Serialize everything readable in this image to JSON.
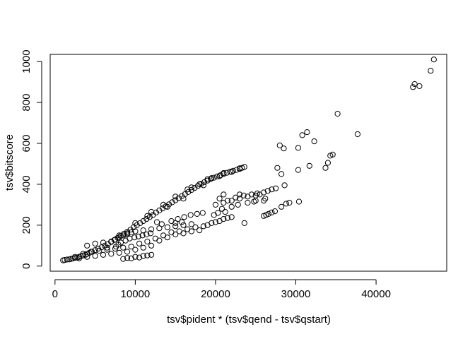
{
  "chart_data": {
    "type": "scatter",
    "title": "",
    "xlabel": "tsv$pident * (tsv$qend - tsv$qstart)",
    "ylabel": "tsv$bitscore",
    "xlim": [
      -600,
      48800
    ],
    "ylim": [
      -25,
      1035
    ],
    "x_ticks": [
      0,
      10000,
      20000,
      30000,
      40000
    ],
    "x_tick_labels": [
      "0",
      "10000",
      "20000",
      "30000",
      "40000"
    ],
    "y_ticks": [
      0,
      200,
      400,
      600,
      800,
      1000
    ],
    "y_tick_labels": [
      "0",
      "200",
      "400",
      "600",
      "800",
      "1000"
    ],
    "grid": false,
    "legend": "none",
    "marker": "open-circle",
    "marker_color": "#000000",
    "points_note": "dense bands approximated; isolated points read off axes",
    "series": [
      {
        "name": "",
        "points": [
          [
            1000,
            28
          ],
          [
            1200,
            30
          ],
          [
            1500,
            32
          ],
          [
            1800,
            33
          ],
          [
            2000,
            35
          ],
          [
            2200,
            37
          ],
          [
            2500,
            40
          ],
          [
            2800,
            42
          ],
          [
            3000,
            45
          ],
          [
            3200,
            48
          ],
          [
            3500,
            52
          ],
          [
            3800,
            55
          ],
          [
            4000,
            60
          ],
          [
            4300,
            65
          ],
          [
            4600,
            70
          ],
          [
            5000,
            78
          ],
          [
            5400,
            85
          ],
          [
            5800,
            92
          ],
          [
            6200,
            100
          ],
          [
            6600,
            108
          ],
          [
            7000,
            118
          ],
          [
            7400,
            128
          ],
          [
            7800,
            138
          ],
          [
            8200,
            148
          ],
          [
            8600,
            158
          ],
          [
            9000,
            168
          ],
          [
            9400,
            178
          ],
          [
            9800,
            190
          ],
          [
            10200,
            200
          ],
          [
            10600,
            210
          ],
          [
            11000,
            220
          ],
          [
            11400,
            230
          ],
          [
            11800,
            240
          ],
          [
            12200,
            250
          ],
          [
            12600,
            262
          ],
          [
            13000,
            272
          ],
          [
            13400,
            282
          ],
          [
            13800,
            292
          ],
          [
            14200,
            302
          ],
          [
            14600,
            312
          ],
          [
            15000,
            322
          ],
          [
            15400,
            332
          ],
          [
            15800,
            342
          ],
          [
            16200,
            352
          ],
          [
            16600,
            362
          ],
          [
            17000,
            372
          ],
          [
            17400,
            382
          ],
          [
            17800,
            392
          ],
          [
            18200,
            402
          ],
          [
            18600,
            410
          ],
          [
            19000,
            418
          ],
          [
            19400,
            426
          ],
          [
            19800,
            432
          ],
          [
            20200,
            438
          ],
          [
            20600,
            444
          ],
          [
            21000,
            450
          ],
          [
            21400,
            456
          ],
          [
            21800,
            462
          ],
          [
            22200,
            466
          ],
          [
            22600,
            470
          ],
          [
            23000,
            475
          ],
          [
            23300,
            480
          ],
          [
            23600,
            485
          ],
          [
            12000,
            265
          ],
          [
            13500,
            300
          ],
          [
            15000,
            340
          ],
          [
            16500,
            375
          ],
          [
            18000,
            400
          ],
          [
            19500,
            430
          ],
          [
            21000,
            455
          ],
          [
            14000,
            290
          ],
          [
            16000,
            330
          ],
          [
            18500,
            395
          ],
          [
            20500,
            440
          ],
          [
            22000,
            460
          ],
          [
            10000,
            210
          ],
          [
            11500,
            245
          ],
          [
            17000,
            385
          ],
          [
            19000,
            425
          ],
          [
            23000,
            478
          ],
          [
            2500,
            45
          ],
          [
            3500,
            60
          ],
          [
            4500,
            70
          ],
          [
            5500,
            75
          ],
          [
            6500,
            80
          ],
          [
            7500,
            85
          ],
          [
            8500,
            90
          ],
          [
            9500,
            95
          ],
          [
            10500,
            110
          ],
          [
            11500,
            120
          ],
          [
            3000,
            38
          ],
          [
            4000,
            45
          ],
          [
            5000,
            50
          ],
          [
            6000,
            55
          ],
          [
            7000,
            60
          ],
          [
            8000,
            65
          ],
          [
            9000,
            70
          ],
          [
            10000,
            80
          ],
          [
            11000,
            90
          ],
          [
            12000,
            100
          ],
          [
            8000,
            150
          ],
          [
            9000,
            160
          ],
          [
            10000,
            170
          ],
          [
            11000,
            175
          ],
          [
            12000,
            180
          ],
          [
            13000,
            185
          ],
          [
            14000,
            190
          ],
          [
            15000,
            195
          ],
          [
            16000,
            200
          ],
          [
            17000,
            205
          ],
          [
            13000,
            125
          ],
          [
            14000,
            140
          ],
          [
            15000,
            155
          ],
          [
            16000,
            160
          ],
          [
            17000,
            170
          ],
          [
            18000,
            175
          ],
          [
            19000,
            200
          ],
          [
            20000,
            215
          ],
          [
            21000,
            230
          ],
          [
            22000,
            240
          ],
          [
            4000,
            100
          ],
          [
            5000,
            110
          ],
          [
            6000,
            115
          ],
          [
            7000,
            120
          ],
          [
            7500,
            130
          ],
          [
            8000,
            140
          ],
          [
            8500,
            150
          ],
          [
            9000,
            155
          ],
          [
            9500,
            165
          ],
          [
            6500,
            90
          ],
          [
            12500,
            135
          ],
          [
            13500,
            150
          ],
          [
            14500,
            165
          ],
          [
            15500,
            170
          ],
          [
            16500,
            180
          ],
          [
            17500,
            190
          ],
          [
            18500,
            195
          ],
          [
            19500,
            210
          ],
          [
            20500,
            220
          ],
          [
            21500,
            235
          ],
          [
            20000,
            300
          ],
          [
            21000,
            310
          ],
          [
            22000,
            320
          ],
          [
            23000,
            330
          ],
          [
            24000,
            340
          ],
          [
            25000,
            345
          ],
          [
            25500,
            350
          ],
          [
            26000,
            360
          ],
          [
            26500,
            368
          ],
          [
            27000,
            375
          ],
          [
            21500,
            320
          ],
          [
            22500,
            335
          ],
          [
            23500,
            345
          ],
          [
            24500,
            350
          ],
          [
            25200,
            355
          ],
          [
            22800,
            300
          ],
          [
            24800,
            315
          ],
          [
            26200,
            330
          ],
          [
            27500,
            380
          ],
          [
            21000,
            350
          ],
          [
            20800,
            280
          ],
          [
            22000,
            290
          ],
          [
            24000,
            310
          ],
          [
            25000,
            320
          ],
          [
            26000,
            320
          ],
          [
            23000,
            350
          ],
          [
            20500,
            330
          ],
          [
            21200,
            265
          ],
          [
            19800,
            250
          ],
          [
            20300,
            260
          ],
          [
            26000,
            245
          ],
          [
            26300,
            250
          ],
          [
            26600,
            255
          ],
          [
            27000,
            262
          ],
          [
            27400,
            268
          ],
          [
            28200,
            290
          ],
          [
            28800,
            305
          ],
          [
            29200,
            310
          ],
          [
            30400,
            315
          ],
          [
            23600,
            210
          ],
          [
            27700,
            480
          ],
          [
            28200,
            450
          ],
          [
            28600,
            395
          ],
          [
            28000,
            590
          ],
          [
            28500,
            575
          ],
          [
            30300,
            470
          ],
          [
            30300,
            578
          ],
          [
            30800,
            640
          ],
          [
            31400,
            655
          ],
          [
            31700,
            490
          ],
          [
            32300,
            610
          ],
          [
            33700,
            480
          ],
          [
            34000,
            505
          ],
          [
            34300,
            540
          ],
          [
            34600,
            545
          ],
          [
            35200,
            745
          ],
          [
            37700,
            645
          ],
          [
            44600,
            875
          ],
          [
            44800,
            890
          ],
          [
            45400,
            880
          ],
          [
            46800,
            955
          ],
          [
            47200,
            1010
          ],
          [
            9000,
            40
          ],
          [
            10000,
            45
          ],
          [
            11000,
            50
          ],
          [
            12000,
            55
          ],
          [
            9500,
            38
          ],
          [
            10500,
            42
          ],
          [
            11500,
            52
          ],
          [
            8500,
            35
          ],
          [
            7600,
            95
          ],
          [
            7900,
            105
          ],
          [
            8200,
            115
          ],
          [
            8800,
            125
          ],
          [
            9300,
            135
          ],
          [
            9900,
            140
          ],
          [
            10400,
            145
          ],
          [
            10900,
            150
          ],
          [
            11400,
            155
          ],
          [
            11900,
            160
          ],
          [
            14500,
            220
          ],
          [
            15300,
            230
          ],
          [
            16100,
            240
          ],
          [
            16900,
            250
          ],
          [
            17700,
            255
          ],
          [
            18400,
            260
          ],
          [
            12700,
            215
          ],
          [
            13300,
            205
          ],
          [
            15000,
            210
          ],
          [
            15800,
            215
          ]
        ]
      }
    ]
  }
}
